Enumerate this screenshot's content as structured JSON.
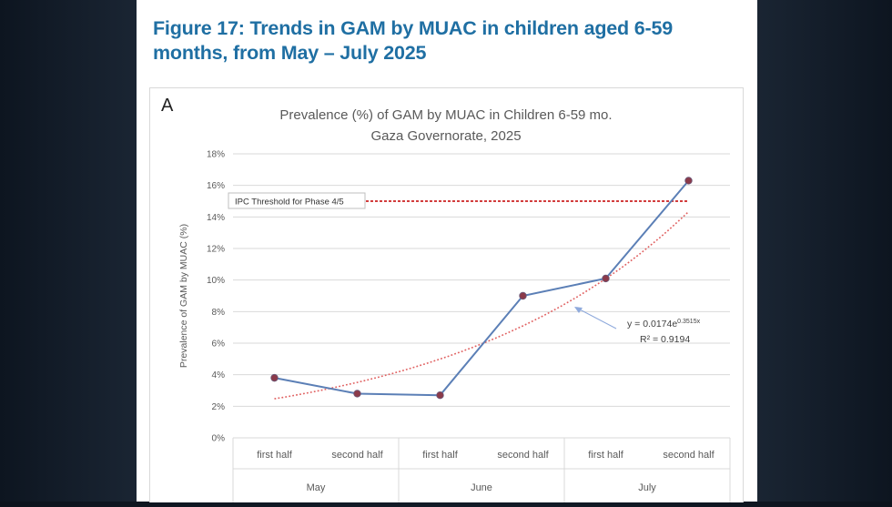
{
  "figure_title": "Figure 17: Trends in GAM by MUAC in children aged 6-59 months, from May – July 2025",
  "chart_data": {
    "type": "line",
    "panel_label": "A",
    "title": "Prevalence (%) of GAM by MUAC in Children 6-59 mo.",
    "subtitle": "Gaza Governorate, 2025",
    "ylabel": "Prevalence of GAM by MUAC (%)",
    "xlabel": "",
    "ylim": [
      0,
      18
    ],
    "yticks": [
      0,
      2,
      4,
      6,
      8,
      10,
      12,
      14,
      16,
      18
    ],
    "ytick_labels": [
      "0%",
      "2%",
      "4%",
      "6%",
      "8%",
      "10%",
      "12%",
      "14%",
      "16%",
      "18%"
    ],
    "grid": true,
    "categories": [
      "first half",
      "second half",
      "first half",
      "second half",
      "first half",
      "second half"
    ],
    "category_groups": [
      {
        "label": "May",
        "span": 2
      },
      {
        "label": "June",
        "span": 2
      },
      {
        "label": "July",
        "span": 2
      }
    ],
    "series": [
      {
        "name": "GAM by MUAC",
        "values": [
          3.8,
          2.8,
          2.7,
          9.0,
          10.1,
          16.3
        ],
        "color": "#5b7fb6",
        "marker_color": "#8b3a4a"
      }
    ],
    "trendline": {
      "type": "exponential",
      "a": 0.0174,
      "b": 0.3515,
      "equation_prefix": "y = 0.0174e",
      "equation_exponent": "0.3515x",
      "r2_label": "R² = 0.9194",
      "color": "#e06060"
    },
    "threshold": {
      "value": 15,
      "label": "IPC Threshold for Phase 4/5",
      "color": "#cc2222"
    },
    "colors": {
      "grid": "#d9d9d9",
      "axis_text": "#595959",
      "title_text": "#595959"
    }
  }
}
